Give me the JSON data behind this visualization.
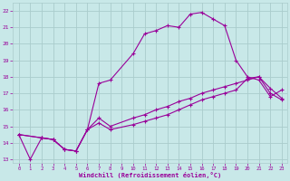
{
  "background_color": "#c8e8e8",
  "grid_color": "#aacccc",
  "line_color": "#990099",
  "xlabel": "Windchill (Refroidissement éolien,°C)",
  "xlabel_color": "#990099",
  "tick_color": "#990099",
  "xlim": [
    -0.5,
    23.5
  ],
  "ylim": [
    12.8,
    22.5
  ],
  "xticks": [
    0,
    1,
    2,
    3,
    4,
    5,
    6,
    7,
    8,
    9,
    10,
    11,
    12,
    13,
    14,
    15,
    16,
    17,
    18,
    19,
    20,
    21,
    22,
    23
  ],
  "yticks": [
    13,
    14,
    15,
    16,
    17,
    18,
    19,
    20,
    21,
    22
  ],
  "line1_x": [
    0,
    1,
    2,
    3,
    4,
    5,
    6,
    7,
    8,
    10,
    11,
    12,
    13,
    14,
    15,
    16,
    17,
    18,
    19,
    20,
    21,
    22,
    23
  ],
  "line1_y": [
    14.5,
    13.0,
    14.3,
    14.2,
    13.6,
    13.5,
    14.8,
    17.6,
    17.8,
    19.4,
    20.6,
    20.8,
    21.1,
    21.0,
    21.8,
    21.9,
    21.5,
    21.1,
    19.0,
    18.0,
    17.8,
    16.8,
    17.2
  ],
  "line2_x": [
    0,
    2,
    3,
    4,
    5,
    6,
    7,
    8,
    10,
    11,
    12,
    13,
    14,
    15,
    16,
    17,
    18,
    19,
    20,
    21,
    22,
    23
  ],
  "line2_y": [
    14.5,
    14.3,
    14.2,
    13.6,
    13.5,
    14.8,
    15.2,
    14.8,
    15.1,
    15.3,
    15.5,
    15.7,
    16.0,
    16.3,
    16.6,
    16.8,
    17.0,
    17.2,
    17.9,
    18.0,
    17.3,
    16.7
  ],
  "line3_x": [
    0,
    2,
    3,
    4,
    5,
    6,
    7,
    8,
    10,
    11,
    12,
    13,
    14,
    15,
    16,
    17,
    18,
    19,
    20,
    21,
    22,
    23
  ],
  "line3_y": [
    14.5,
    14.3,
    14.2,
    13.6,
    13.5,
    14.8,
    15.5,
    15.0,
    15.5,
    15.7,
    16.0,
    16.2,
    16.5,
    16.7,
    17.0,
    17.2,
    17.4,
    17.6,
    17.8,
    18.0,
    17.0,
    16.6
  ]
}
